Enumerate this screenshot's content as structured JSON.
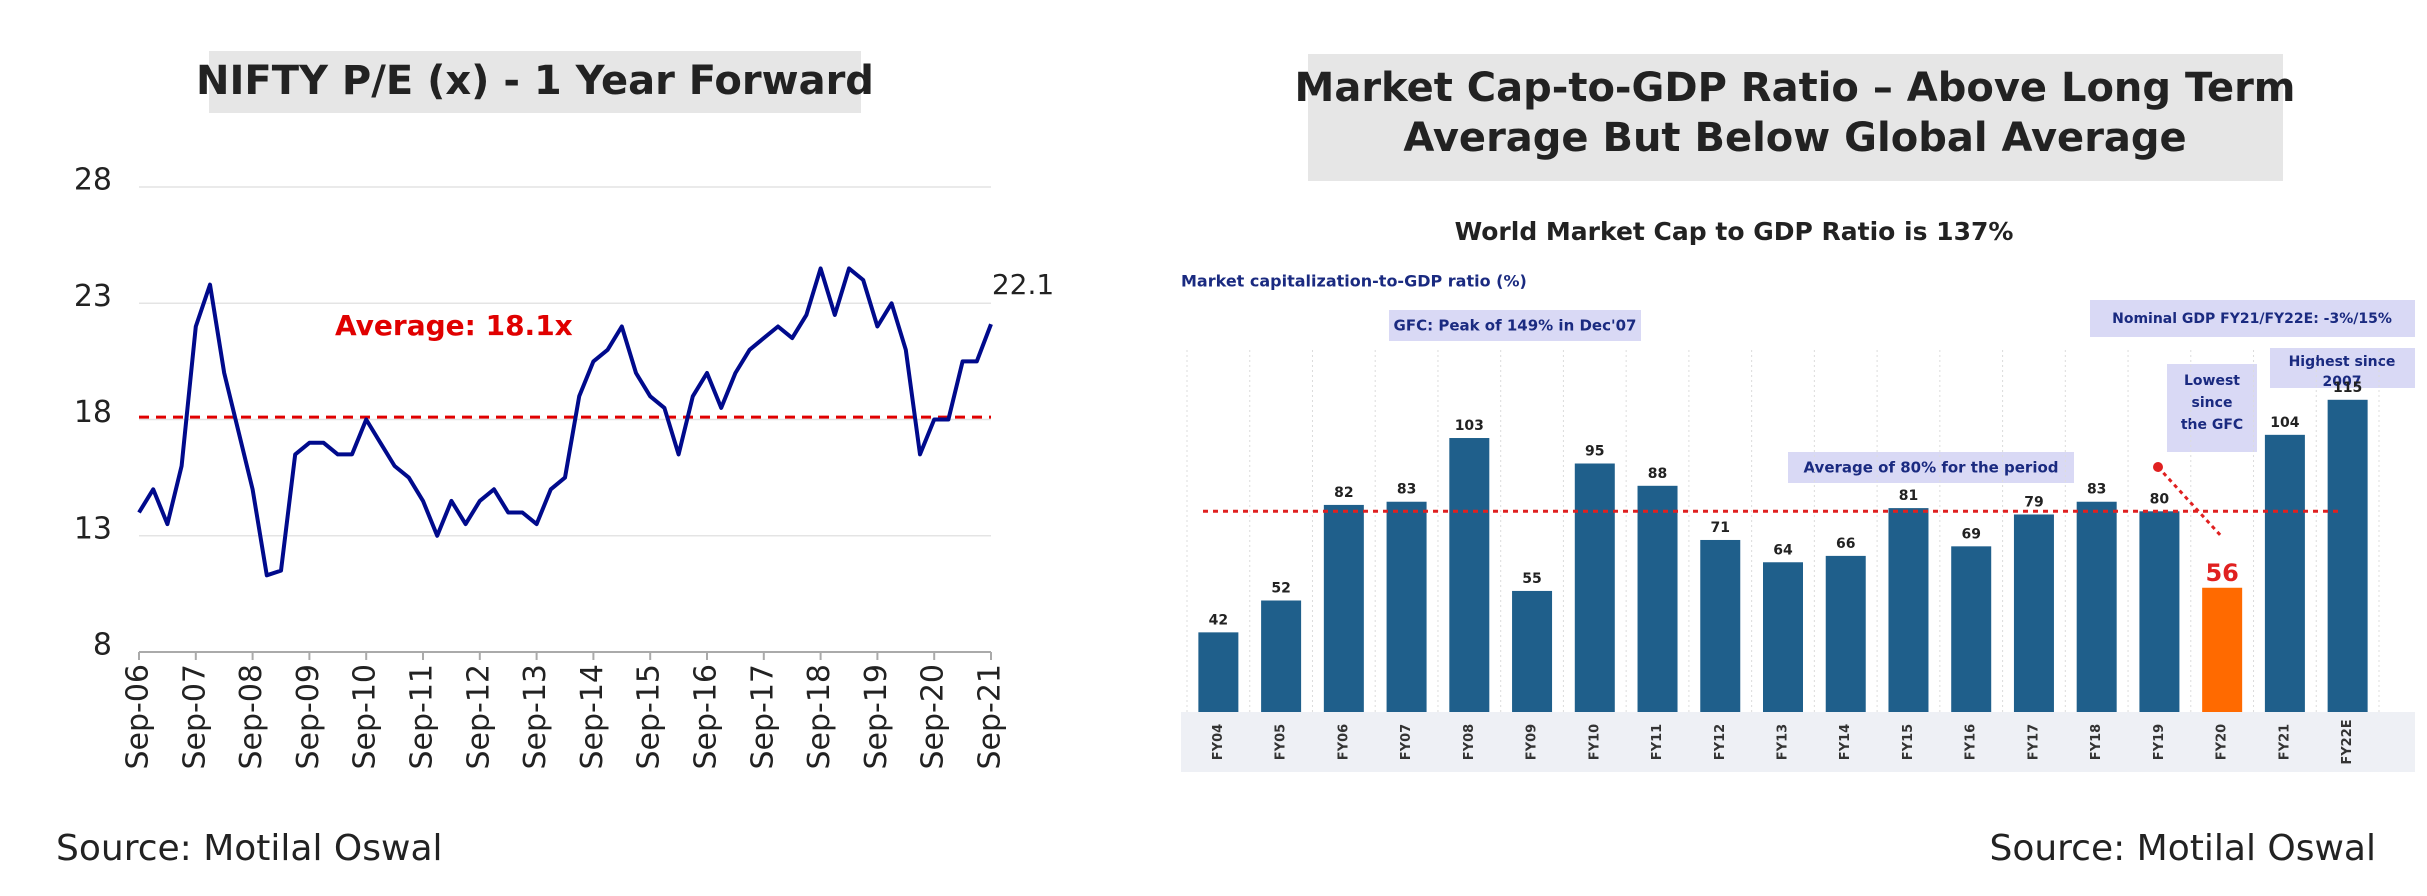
{
  "chart_data": [
    {
      "type": "line",
      "title": "NIFTY P/E (x) - 1 Year Forward",
      "annotation": "Average: 18.1x",
      "average": 18.1,
      "source": "Source: Motilal Oswal",
      "categories": [
        "Sep-06",
        null,
        null,
        null,
        "Sep-07",
        null,
        null,
        null,
        "Sep-08",
        null,
        null,
        null,
        "Sep-09",
        null,
        null,
        null,
        "Sep-10",
        null,
        null,
        null,
        "Sep-11",
        null,
        null,
        null,
        "Sep-12",
        null,
        null,
        null,
        "Sep-13",
        null,
        null,
        null,
        "Sep-14",
        null,
        null,
        null,
        "Sep-15",
        null,
        null,
        null,
        "Sep-16",
        null,
        null,
        null,
        "Sep-17",
        null,
        null,
        null,
        "Sep-18",
        null,
        null,
        null,
        "Sep-19",
        null,
        null,
        null,
        "Sep-20",
        null,
        null,
        null,
        "Sep-21"
      ],
      "series": [
        {
          "color": "#000a8c",
          "values": [
            14,
            15,
            13.5,
            16,
            22,
            23.8,
            20,
            17.5,
            15,
            11.3,
            11.5,
            16.5,
            17,
            17,
            16.5,
            16.5,
            18,
            17,
            16,
            15.5,
            14.5,
            13,
            14.5,
            13.5,
            14.5,
            15,
            14,
            14,
            13.5,
            15,
            15.5,
            19,
            20.5,
            21,
            22,
            20,
            19,
            18.5,
            16.5,
            19,
            20,
            18.5,
            20,
            21,
            21.5,
            22,
            21.5,
            22.5,
            24.5,
            22.5,
            24.5,
            24,
            22,
            23,
            21,
            16.5,
            18,
            18,
            20.5,
            20.5,
            22.1
          ]
        }
      ],
      "average_color": "#e00000",
      "ylim": [
        8,
        28
      ],
      "yticks": [
        8,
        13,
        18,
        23,
        28
      ],
      "grid": true
    },
    {
      "type": "bar",
      "title": [
        "Market Cap-to-GDP Ratio – Above Long Term",
        "Average But Below Global Average"
      ],
      "subtitle": "World Market Cap to GDP Ratio is 137%",
      "ylabel": "Market capitalization-to-GDP ratio (%)",
      "annotations": {
        "gfc": "GFC: Peak of 149% in Dec'07",
        "gdp": "Nominal GDP FY21/FY22E: -3%/15%",
        "avg": "Average of 80% for the period",
        "lowest": [
          "Lowest",
          "since",
          "the GFC"
        ],
        "highest": [
          "Highest since",
          "2007"
        ]
      },
      "average": 80,
      "source": "Source: Motilal Oswal",
      "categories": [
        "FY04",
        "FY05",
        "FY06",
        "FY07",
        "FY08",
        "FY09",
        "FY10",
        "FY11",
        "FY12",
        "FY13",
        "FY14",
        "FY15",
        "FY16",
        "FY17",
        "FY18",
        "FY19",
        "FY20",
        "FY21",
        "FY22E"
      ],
      "values": [
        42,
        52,
        82,
        83,
        103,
        55,
        95,
        88,
        71,
        64,
        66,
        81,
        69,
        79,
        83,
        80,
        56,
        104,
        115
      ],
      "colors": [
        "#1f5f8b",
        "#1f5f8b",
        "#1f5f8b",
        "#1f5f8b",
        "#1f5f8b",
        "#1f5f8b",
        "#1f5f8b",
        "#1f5f8b",
        "#1f5f8b",
        "#1f5f8b",
        "#1f5f8b",
        "#1f5f8b",
        "#1f5f8b",
        "#1f5f8b",
        "#1f5f8b",
        "#1f5f8b",
        "#ff6a00",
        "#1f5f8b",
        "#1f5f8b"
      ],
      "average_color": "#e02020",
      "ylim": [
        17,
        130
      ]
    }
  ]
}
